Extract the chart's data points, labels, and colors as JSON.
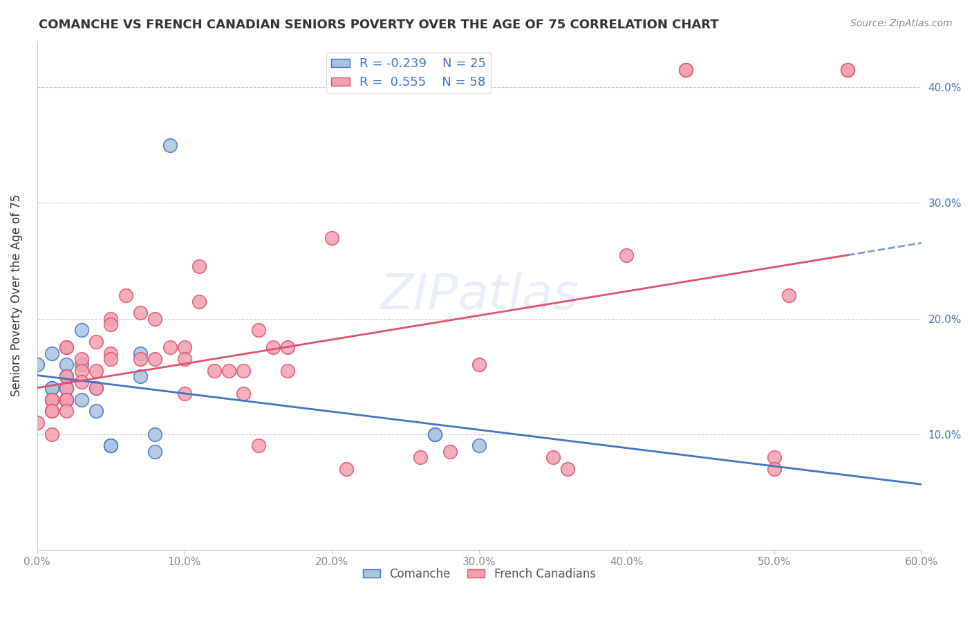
{
  "title": "COMANCHE VS FRENCH CANADIAN SENIORS POVERTY OVER THE AGE OF 75 CORRELATION CHART",
  "source": "Source: ZipAtlas.com",
  "ylabel": "Seniors Poverty Over the Age of 75",
  "xlabel": "",
  "xlim": [
    0.0,
    0.6
  ],
  "ylim": [
    0.0,
    0.44
  ],
  "xticks": [
    0.0,
    0.1,
    0.2,
    0.3,
    0.4,
    0.5,
    0.6
  ],
  "yticks": [
    0.0,
    0.1,
    0.2,
    0.3,
    0.4
  ],
  "xtick_labels": [
    "0.0%",
    "10.0%",
    "20.0%",
    "30.0%",
    "40.0%",
    "50.0%",
    "60.0%"
  ],
  "ytick_labels_left": [
    "",
    "",
    "",
    "",
    ""
  ],
  "ytick_labels_right": [
    "",
    "10.0%",
    "20.0%",
    "30.0%",
    "40.0%"
  ],
  "watermark": "ZIPatlas",
  "comanche_R": "-0.239",
  "comanche_N": "25",
  "french_R": "0.555",
  "french_N": "58",
  "comanche_color": "#a8c4e0",
  "comanche_line_color": "#4472c4",
  "french_color": "#f4a0b0",
  "french_line_color": "#e05070",
  "comanche_x": [
    0.0,
    0.01,
    0.01,
    0.01,
    0.01,
    0.02,
    0.02,
    0.02,
    0.02,
    0.02,
    0.03,
    0.03,
    0.03,
    0.04,
    0.04,
    0.05,
    0.05,
    0.07,
    0.07,
    0.08,
    0.08,
    0.09,
    0.27,
    0.27,
    0.3
  ],
  "comanche_y": [
    0.16,
    0.17,
    0.14,
    0.14,
    0.13,
    0.16,
    0.15,
    0.14,
    0.13,
    0.13,
    0.19,
    0.16,
    0.13,
    0.14,
    0.12,
    0.09,
    0.09,
    0.17,
    0.15,
    0.1,
    0.085,
    0.35,
    0.1,
    0.1,
    0.09
  ],
  "french_x": [
    0.0,
    0.01,
    0.01,
    0.01,
    0.01,
    0.01,
    0.02,
    0.02,
    0.02,
    0.02,
    0.02,
    0.02,
    0.02,
    0.03,
    0.03,
    0.03,
    0.04,
    0.04,
    0.04,
    0.05,
    0.05,
    0.05,
    0.05,
    0.06,
    0.07,
    0.07,
    0.08,
    0.08,
    0.09,
    0.1,
    0.1,
    0.1,
    0.11,
    0.11,
    0.12,
    0.13,
    0.14,
    0.14,
    0.15,
    0.15,
    0.16,
    0.17,
    0.17,
    0.2,
    0.21,
    0.26,
    0.28,
    0.3,
    0.35,
    0.36,
    0.4,
    0.44,
    0.44,
    0.5,
    0.5,
    0.51,
    0.55,
    0.55
  ],
  "french_y": [
    0.11,
    0.13,
    0.13,
    0.12,
    0.12,
    0.1,
    0.14,
    0.175,
    0.175,
    0.15,
    0.13,
    0.13,
    0.12,
    0.165,
    0.155,
    0.145,
    0.18,
    0.155,
    0.14,
    0.2,
    0.195,
    0.17,
    0.165,
    0.22,
    0.205,
    0.165,
    0.2,
    0.165,
    0.175,
    0.175,
    0.165,
    0.135,
    0.245,
    0.215,
    0.155,
    0.155,
    0.155,
    0.135,
    0.19,
    0.09,
    0.175,
    0.175,
    0.155,
    0.27,
    0.07,
    0.08,
    0.085,
    0.16,
    0.08,
    0.07,
    0.255,
    0.415,
    0.415,
    0.08,
    0.07,
    0.22,
    0.415,
    0.415
  ],
  "background_color": "#ffffff",
  "grid_color": "#cccccc"
}
